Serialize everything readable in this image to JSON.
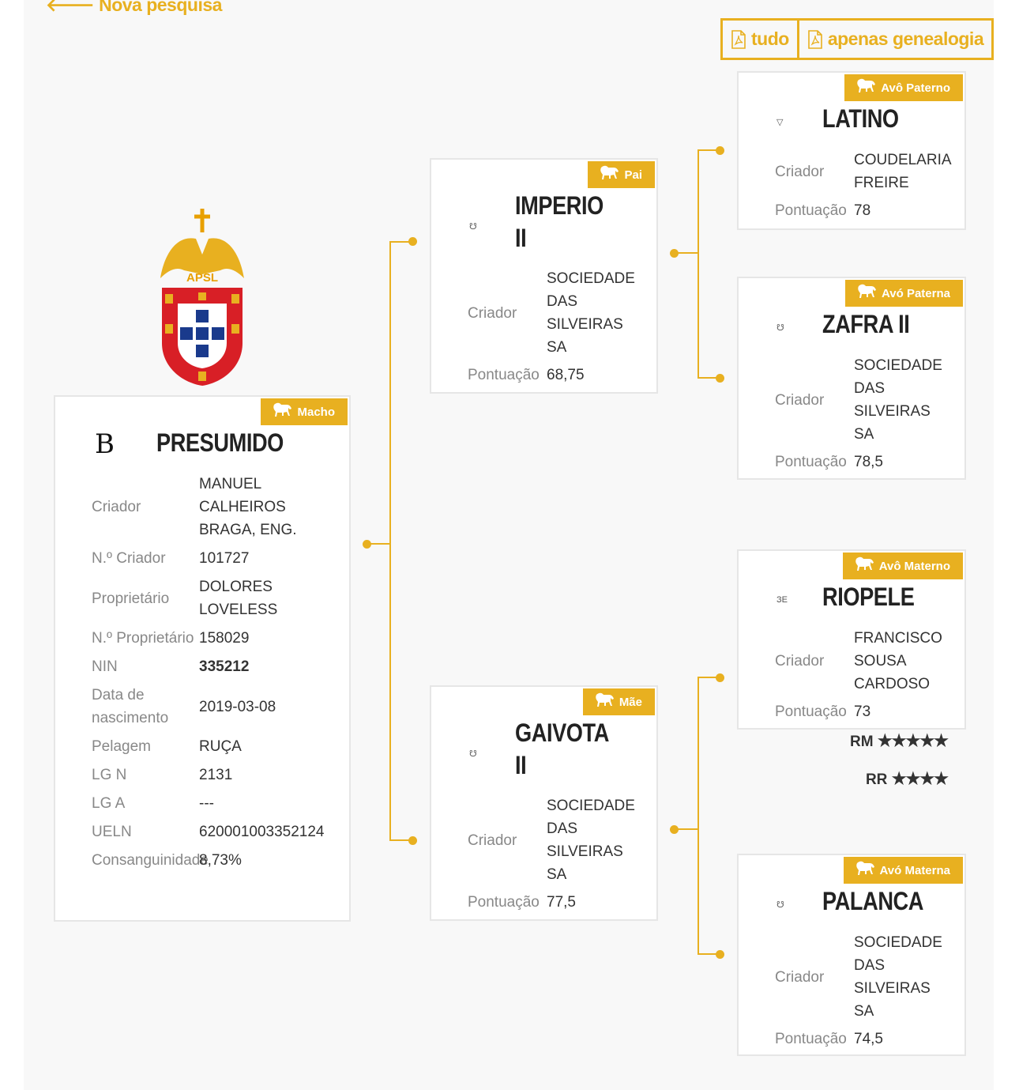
{
  "nav": {
    "back_label": "Nova pesquisa",
    "back_icon": "arrow-left-icon"
  },
  "pdf": {
    "all_label": "tudo",
    "genealogy_label": "apenas genealogia",
    "icon": "file-pdf-icon"
  },
  "colors": {
    "accent": "#e8b020",
    "panel": "#f8f8f8"
  },
  "logo": {
    "text": "APSL"
  },
  "horses": {
    "main": {
      "badge": "Macho",
      "brand": "B",
      "name": "PRESUMIDO",
      "fields": [
        {
          "label": "Criador",
          "value": "MANUEL CALHEIROS BRAGA, ENG."
        },
        {
          "label": "N.º Criador",
          "value": "101727"
        },
        {
          "label": "Proprietário",
          "value": "DOLORES LOVELESS"
        },
        {
          "label": "N.º Proprietário",
          "value": "158029"
        },
        {
          "label": "NIN",
          "value": "335212",
          "bold": true
        },
        {
          "label": "Data de nascimento",
          "value": "2019-03-08"
        },
        {
          "label": "Pelagem",
          "value": "RUÇA"
        },
        {
          "label": "LG N",
          "value": "2131"
        },
        {
          "label": "LG A",
          "value": "---"
        },
        {
          "label": "UELN",
          "value": "620001003352124"
        },
        {
          "label": "Consanguinidade",
          "value": "8,73%"
        }
      ]
    },
    "sire": {
      "badge": "Pai",
      "brand": "☋",
      "name": "IMPERIO II",
      "fields": [
        {
          "label": "Criador",
          "value": "SOCIEDADE DAS SILVEIRAS SA"
        },
        {
          "label": "Pontuação",
          "value": "68,75"
        }
      ]
    },
    "dam": {
      "badge": "Mãe",
      "brand": "☋",
      "name": "GAIVOTA II",
      "fields": [
        {
          "label": "Criador",
          "value": "SOCIEDADE DAS SILVEIRAS SA"
        },
        {
          "label": "Pontuação",
          "value": "77,5"
        }
      ]
    },
    "pgs": {
      "badge": "Avô Paterno",
      "brand": "▽",
      "name": "LATINO",
      "fields": [
        {
          "label": "Criador",
          "value": "COUDELARIA FREIRE"
        },
        {
          "label": "Pontuação",
          "value": "78"
        }
      ]
    },
    "pgd": {
      "badge": "Avó Paterna",
      "brand": "☋",
      "name": "ZAFRA II",
      "fields": [
        {
          "label": "Criador",
          "value": "SOCIEDADE DAS SILVEIRAS SA"
        },
        {
          "label": "Pontuação",
          "value": "78,5"
        }
      ]
    },
    "mgs": {
      "badge": "Avô Materno",
      "brand": "ЗЕ",
      "name": "RIOPELE",
      "fields": [
        {
          "label": "Criador",
          "value": "FRANCISCO SOUSA CARDOSO"
        },
        {
          "label": "Pontuação",
          "value": "73"
        }
      ],
      "ratings": [
        {
          "label": "RM",
          "stars": 5
        },
        {
          "label": "RR",
          "stars": 4
        }
      ]
    },
    "mgd": {
      "badge": "Avó Materna",
      "brand": "☋",
      "name": "PALANCA",
      "fields": [
        {
          "label": "Criador",
          "value": "SOCIEDADE DAS SILVEIRAS SA"
        },
        {
          "label": "Pontuação",
          "value": "74,5"
        }
      ]
    }
  }
}
